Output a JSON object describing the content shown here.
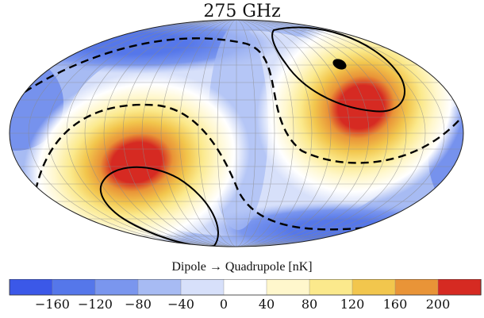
{
  "title": "275 GHz",
  "colorbar": {
    "label": "Dipole → Quadrupole [nK]",
    "colors": [
      "#3b58e8",
      "#5577ea",
      "#7a96ee",
      "#a7bbf3",
      "#d7e0fa",
      "#ffffff",
      "#fff7cc",
      "#fbe98c",
      "#f2c64d",
      "#e99437",
      "#d62a22"
    ],
    "tick_labels": [
      "−160",
      "−120",
      "−80",
      "−40",
      "0",
      "40",
      "80",
      "120",
      "160",
      "200"
    ]
  },
  "map_legend": {
    "dashed_contour": "",
    "solid_contour": ""
  }
}
